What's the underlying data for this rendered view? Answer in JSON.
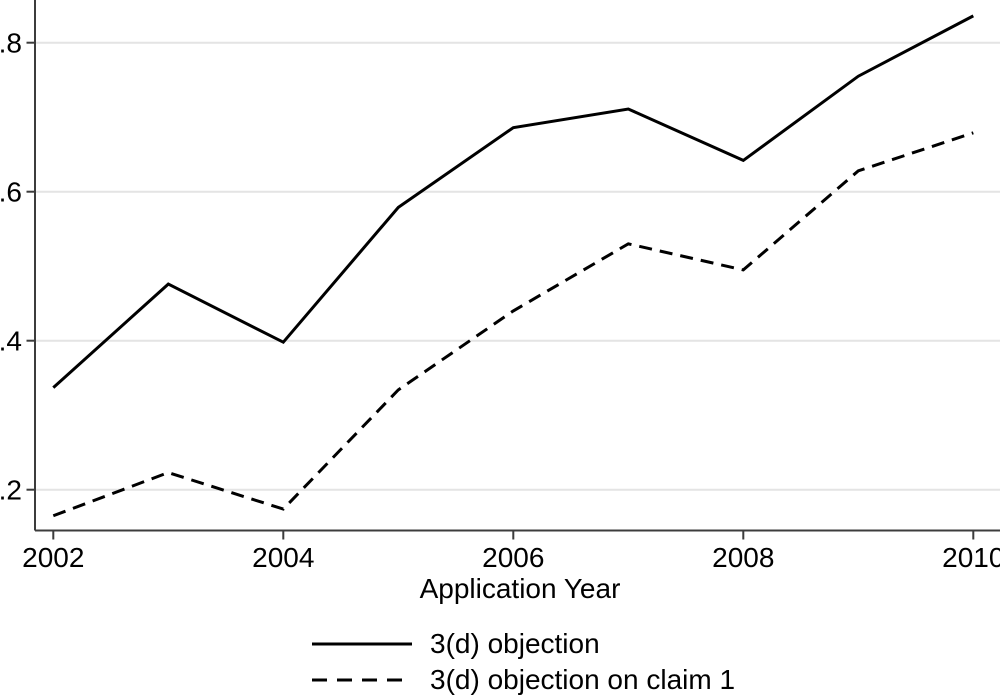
{
  "chart_data": {
    "type": "line",
    "title": "",
    "xlabel": "Application Year",
    "ylabel": "",
    "x": [
      2002,
      2003,
      2004,
      2005,
      2006,
      2007,
      2008,
      2009,
      2010
    ],
    "series": [
      {
        "name": "3(d) objection",
        "style": "solid",
        "values": [
          0.337,
          0.476,
          0.398,
          0.579,
          0.686,
          0.711,
          0.642,
          0.755,
          0.836
        ]
      },
      {
        "name": "3(d) objection on claim 1",
        "style": "dashed",
        "values": [
          0.165,
          0.223,
          0.174,
          0.334,
          0.44,
          0.53,
          0.495,
          0.628,
          0.679
        ]
      }
    ],
    "x_ticks": [
      2002,
      2004,
      2006,
      2008,
      2010
    ],
    "y_ticks": [
      0.2,
      0.4,
      0.6,
      0.8
    ],
    "y_tick_labels": [
      ".2",
      ".4",
      ".6",
      ".8"
    ],
    "xlim": [
      2001.84,
      2010.23
    ],
    "ylim": [
      0.146,
      0.857
    ],
    "grid": true,
    "legend_position": "bottom-center",
    "colors": {
      "line": "#000000",
      "grid": "#e4e4e4",
      "axis": "#3c3c3c",
      "text": "#000000",
      "background": "#ffffff"
    }
  }
}
